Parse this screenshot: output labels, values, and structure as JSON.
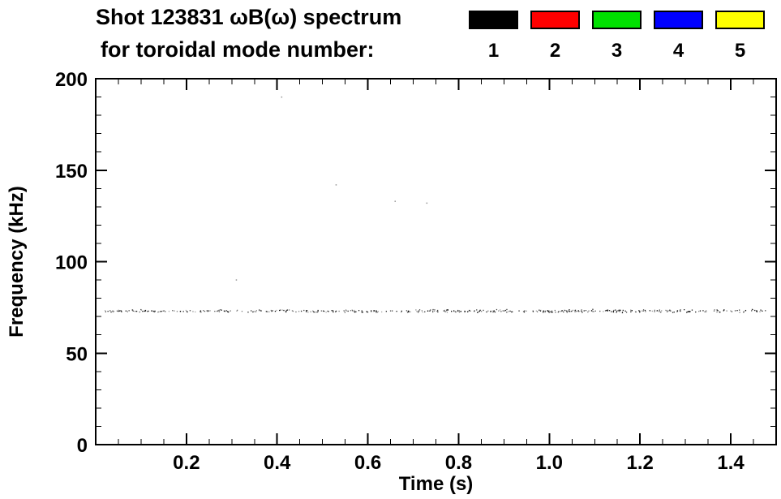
{
  "window": {
    "background": "#ffffff",
    "text_color": "#000000"
  },
  "chart_data": {
    "type": "scatter",
    "title": "Shot 123831 ωB(ω) spectrum",
    "subtitle": "for toroidal mode number:",
    "xlabel": "Time (s)",
    "ylabel": "Frequency (kHz)",
    "xlim": [
      0,
      1.5
    ],
    "ylim": [
      0,
      200
    ],
    "x_major_ticks": [
      0.2,
      0.4,
      0.6,
      0.8,
      1.0,
      1.2,
      1.4
    ],
    "x_tick_labels": [
      "0.2",
      "0.4",
      "0.6",
      "0.8",
      "1.0",
      "1.2",
      "1.4"
    ],
    "x_minor_step": 0.05,
    "y_major_ticks": [
      0,
      50,
      100,
      150,
      200
    ],
    "y_tick_labels": [
      "0",
      "50",
      "100",
      "150",
      "200"
    ],
    "y_minor_step": 10,
    "grid": false,
    "axis_color": "#000000",
    "legend": {
      "position": "top-right",
      "items": [
        {
          "label": "1",
          "color": "#000000"
        },
        {
          "label": "2",
          "color": "#ff0000"
        },
        {
          "label": "3",
          "color": "#00e000"
        },
        {
          "label": "4",
          "color": "#0000ff"
        },
        {
          "label": "5",
          "color": "#ffff00"
        }
      ]
    },
    "series": [
      {
        "name": "mode-1-band",
        "mode_number": 1,
        "color": "#000000",
        "description": "dense horizontal band of scattered points",
        "time_range": [
          0.02,
          1.48
        ],
        "frequency_khz": 73,
        "frequency_jitter_khz": 1.0,
        "point_count": 480
      }
    ],
    "stray_points": [
      {
        "t": 0.41,
        "f": 190
      },
      {
        "t": 0.31,
        "f": 90
      },
      {
        "t": 0.53,
        "f": 142
      },
      {
        "t": 0.66,
        "f": 133
      },
      {
        "t": 0.73,
        "f": 132
      }
    ]
  }
}
